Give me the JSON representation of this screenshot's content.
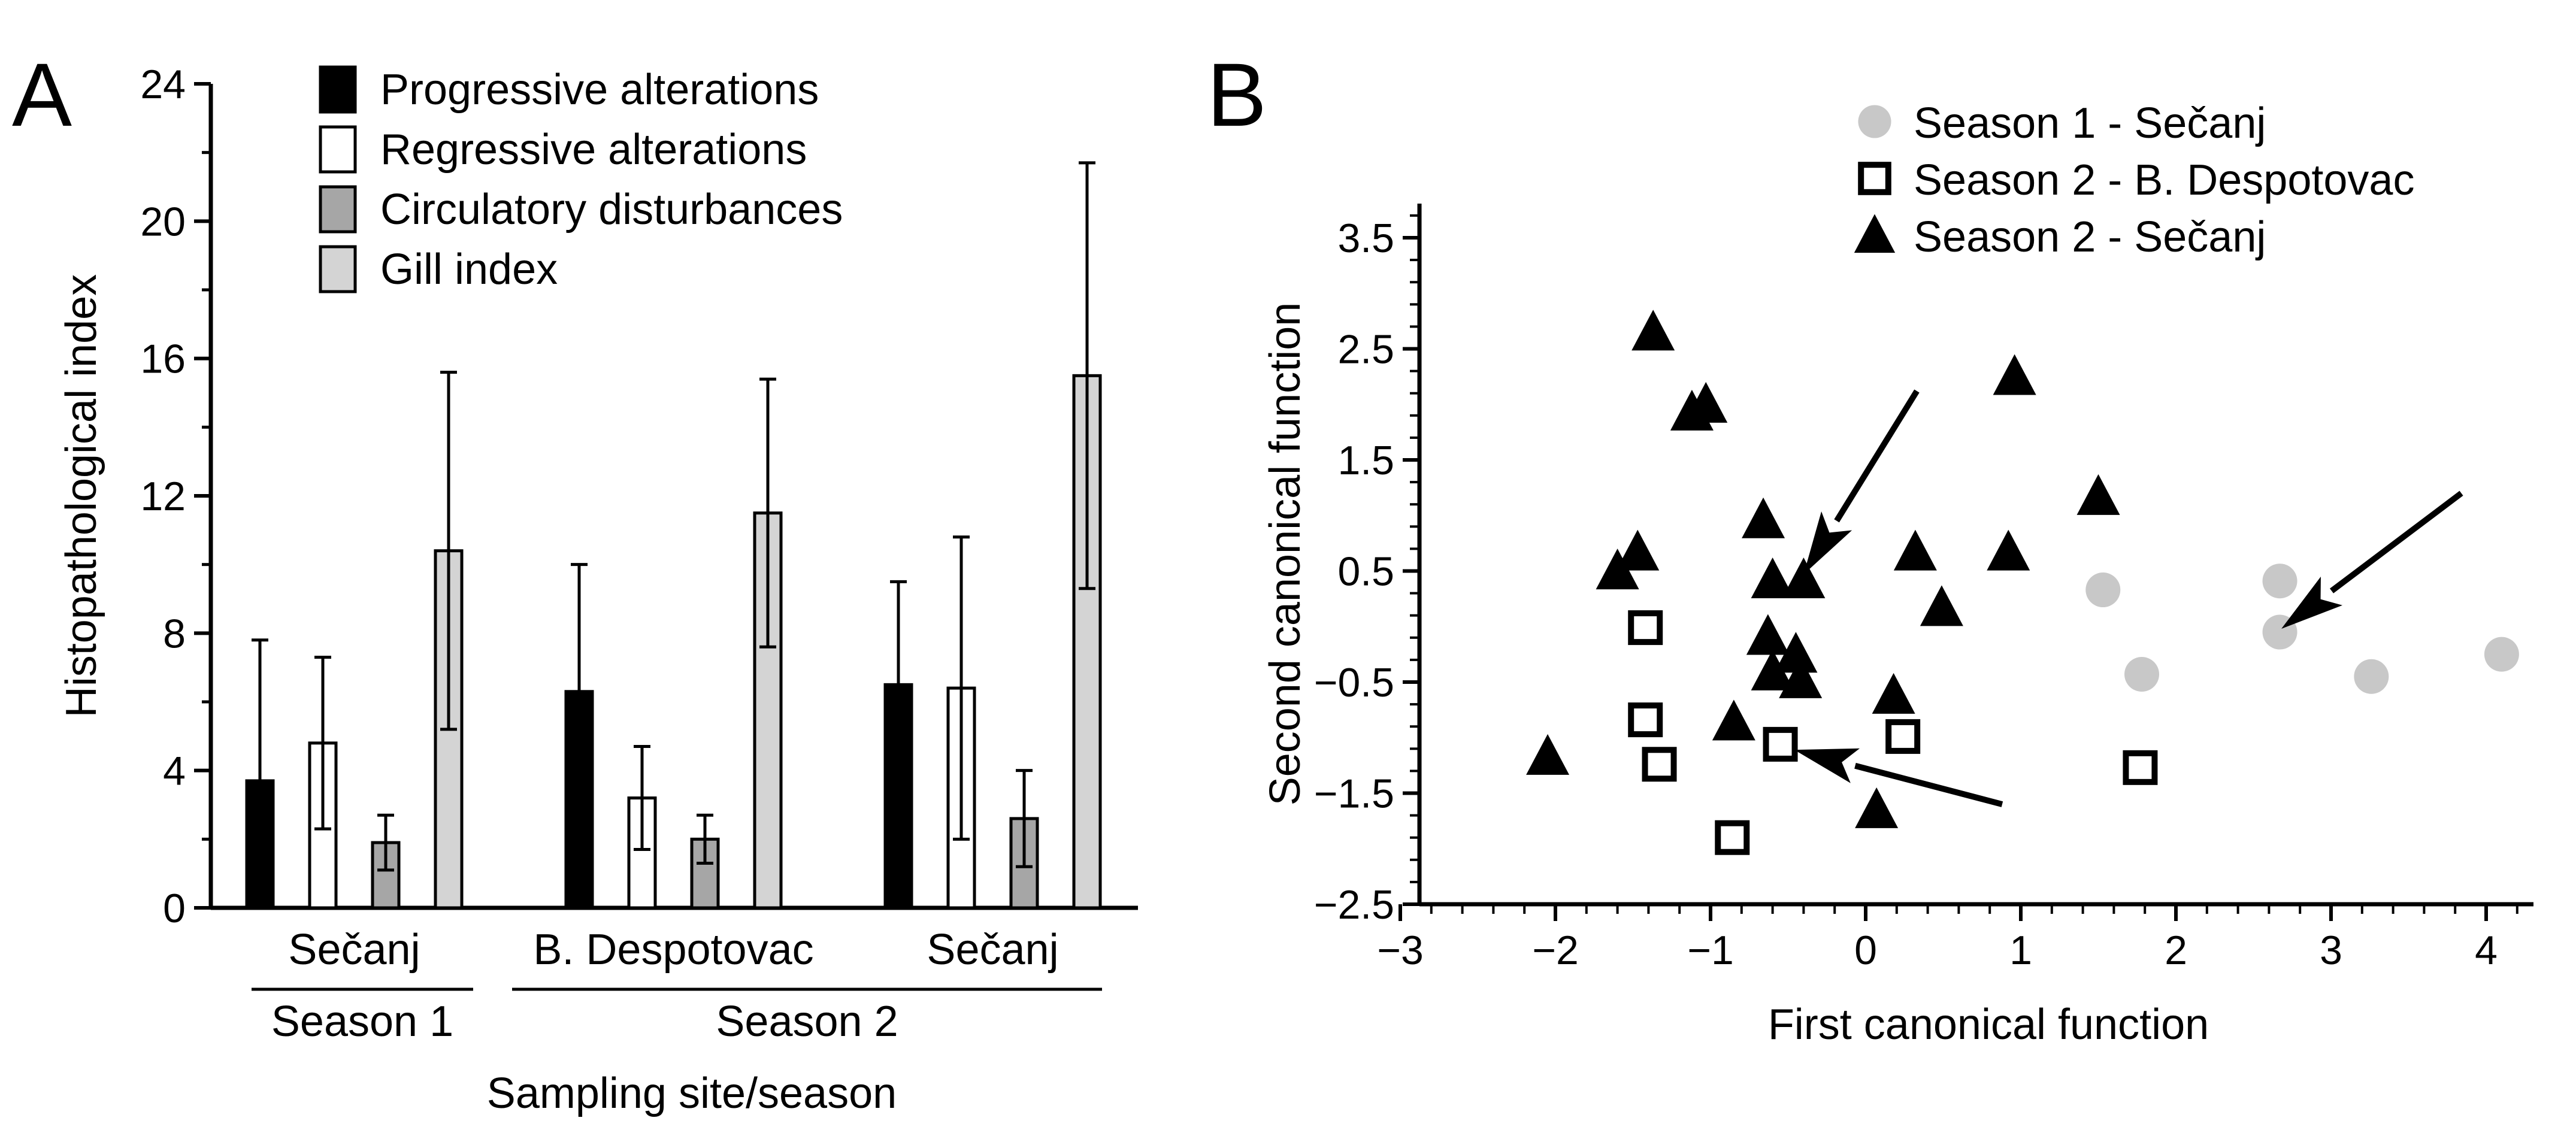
{
  "panels": {
    "a_letter": "A",
    "b_letter": "B"
  },
  "colors": {
    "black": "#000000",
    "white": "#ffffff",
    "dark_gray": "#a6a6a6",
    "light_gray": "#d4d4d4",
    "season1_marker": "#c8c8c8"
  },
  "chart_data": [
    {
      "type": "bar",
      "panel": "A",
      "ylabel": "Histopathological index",
      "xlabel": "Sampling site/season",
      "ylim": [
        0,
        24
      ],
      "yticks": [
        0,
        4,
        8,
        12,
        16,
        20,
        24
      ],
      "grid": false,
      "legend_position": "top",
      "categories": [
        "Sečanj",
        "B. Despotovac",
        "Sečanj"
      ],
      "season_groups": [
        {
          "label": "Season 1",
          "categories": [
            0
          ]
        },
        {
          "label": "Season 2",
          "categories": [
            1,
            2
          ]
        }
      ],
      "series": [
        {
          "name": "Progressive alterations",
          "color": "#000000",
          "values": [
            3.7,
            6.3,
            6.5
          ],
          "error": [
            4.1,
            3.7,
            3.0
          ]
        },
        {
          "name": "Regressive alterations",
          "color": "#ffffff",
          "values": [
            4.8,
            3.2,
            6.4
          ],
          "error": [
            2.5,
            1.5,
            4.4
          ]
        },
        {
          "name": "Circulatory disturbances",
          "color": "#a6a6a6",
          "values": [
            1.9,
            2.0,
            2.6
          ],
          "error": [
            0.8,
            0.7,
            1.4
          ]
        },
        {
          "name": "Gill index",
          "color": "#d4d4d4",
          "values": [
            10.4,
            11.5,
            15.5
          ],
          "error": [
            5.2,
            3.9,
            6.2
          ]
        }
      ]
    },
    {
      "type": "scatter",
      "panel": "B",
      "xlabel": "First canonical function",
      "ylabel": "Second canonical function",
      "xlim": [
        -3,
        4.4
      ],
      "ylim": [
        -2.5,
        3.8
      ],
      "xticks": [
        -3,
        -2,
        -1,
        0,
        1,
        2,
        3,
        4
      ],
      "yticks": [
        -2.5,
        -1.5,
        -0.5,
        0.5,
        1.5,
        2.5,
        3.5
      ],
      "grid": false,
      "legend_position": "top",
      "series": [
        {
          "name": "Season 1 - Sečanj",
          "marker": "circle",
          "color": "#c8c8c8",
          "points": [
            [
              1.53,
              0.33
            ],
            [
              1.78,
              -0.43
            ],
            [
              2.67,
              0.41
            ],
            [
              2.67,
              -0.05
            ],
            [
              3.26,
              -0.45
            ],
            [
              4.1,
              -0.25
            ]
          ]
        },
        {
          "name": "Season 2 - B. Despotovac",
          "marker": "square",
          "color": "#ffffff",
          "points": [
            [
              -1.42,
              -0.01
            ],
            [
              -1.42,
              -0.84
            ],
            [
              -1.33,
              -1.24
            ],
            [
              -0.55,
              -1.06
            ],
            [
              -0.86,
              -1.9
            ],
            [
              0.24,
              -0.99
            ],
            [
              1.77,
              -1.27
            ]
          ]
        },
        {
          "name": "Season 2 - Sečanj",
          "marker": "triangle",
          "color": "#000000",
          "points": [
            [
              -1.37,
              2.65
            ],
            [
              -1.12,
              1.93
            ],
            [
              -1.03,
              2.0
            ],
            [
              0.96,
              2.25
            ],
            [
              -0.66,
              0.96
            ],
            [
              -1.6,
              0.5
            ],
            [
              -1.47,
              0.67
            ],
            [
              -0.6,
              0.42
            ],
            [
              -0.4,
              0.42
            ],
            [
              0.32,
              0.67
            ],
            [
              0.92,
              0.67
            ],
            [
              0.49,
              0.17
            ],
            [
              1.5,
              1.17
            ],
            [
              -0.63,
              -0.09
            ],
            [
              -0.45,
              -0.25
            ],
            [
              -0.6,
              -0.41
            ],
            [
              -0.42,
              -0.48
            ],
            [
              -2.05,
              -1.17
            ],
            [
              -0.85,
              -0.86
            ],
            [
              0.18,
              -0.62
            ],
            [
              0.07,
              -1.65
            ]
          ]
        }
      ],
      "arrows": [
        {
          "from": [
            0.33,
            2.12
          ],
          "to": [
            -0.4,
            0.47
          ]
        },
        {
          "from": [
            3.84,
            1.2
          ],
          "to": [
            2.68,
            -0.02
          ]
        },
        {
          "from": [
            0.88,
            -1.6
          ],
          "to": [
            -0.46,
            -1.11
          ]
        }
      ]
    }
  ]
}
